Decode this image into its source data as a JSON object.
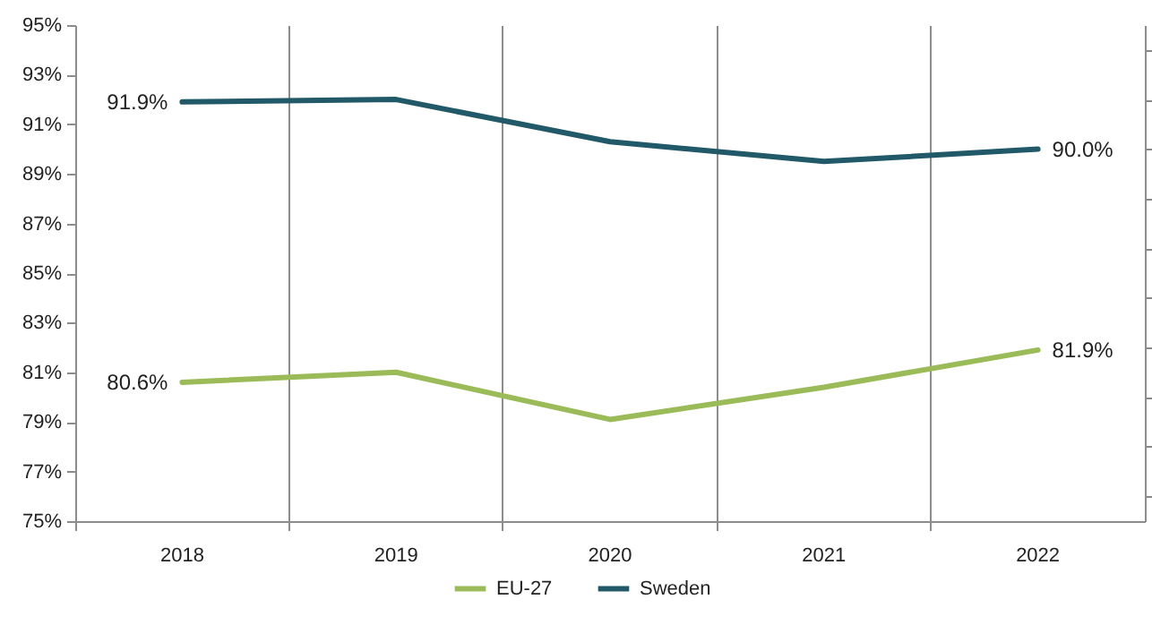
{
  "chart_data": {
    "type": "line",
    "categories": [
      "2018",
      "2019",
      "2020",
      "2021",
      "2022"
    ],
    "series": [
      {
        "name": "EU-27",
        "color": "#9bbb59",
        "values": [
          80.6,
          81.0,
          79.1,
          80.4,
          81.9
        ],
        "value_labels": [
          "80.6%",
          null,
          null,
          null,
          "81.9%"
        ]
      },
      {
        "name": "Sweden",
        "color": "#215968",
        "values": [
          91.9,
          92.0,
          90.3,
          89.5,
          90.0
        ],
        "value_labels": [
          "91.9%",
          null,
          null,
          null,
          "90.0%"
        ]
      }
    ],
    "ylim": [
      75,
      95
    ],
    "yticks": [
      {
        "value": 75,
        "label": "75%"
      },
      {
        "value": 77,
        "label": "77%"
      },
      {
        "value": 79,
        "label": "79%"
      },
      {
        "value": 81,
        "label": "81%"
      },
      {
        "value": 83,
        "label": "83%"
      },
      {
        "value": 85,
        "label": "85%"
      },
      {
        "value": 87,
        "label": "87%"
      },
      {
        "value": 89,
        "label": "89%"
      },
      {
        "value": 91,
        "label": "91%"
      },
      {
        "value": 93,
        "label": "93%"
      },
      {
        "value": 95,
        "label": "95%"
      }
    ],
    "grid": "x",
    "legend": "bottom",
    "marker": "none",
    "line_style": "solid"
  }
}
